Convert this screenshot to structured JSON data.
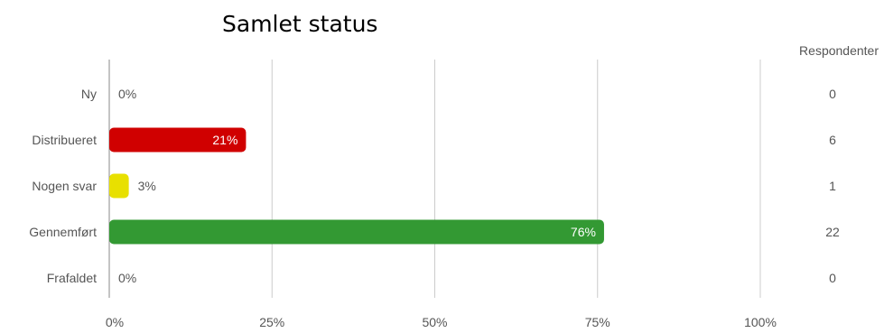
{
  "chart_data": {
    "type": "bar",
    "orientation": "horizontal",
    "title": "Samlet status",
    "categories": [
      "Ny",
      "Distribueret",
      "Nogen svar",
      "Gennemført",
      "Frafaldet"
    ],
    "values": [
      0,
      21,
      3,
      76,
      0
    ],
    "value_labels": [
      "0%",
      "21%",
      "3%",
      "76%",
      "0%"
    ],
    "colors": [
      "#cccccc",
      "#d00000",
      "#e8e000",
      "#339933",
      "#cccccc"
    ],
    "xlim": [
      0,
      100
    ],
    "xticks": [
      "0%",
      "25%",
      "50%",
      "75%",
      "100%"
    ],
    "grid": true,
    "respondents_header": "Respondenter",
    "respondents": [
      "0",
      "6",
      "1",
      "22",
      "0"
    ]
  }
}
